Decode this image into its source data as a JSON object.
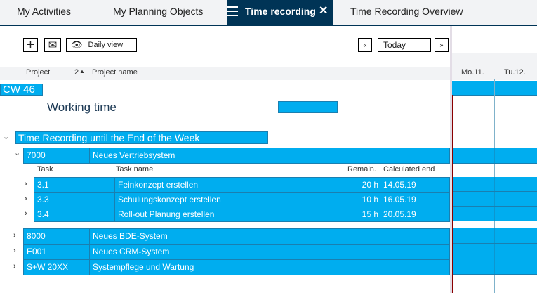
{
  "tabs": [
    {
      "label": "My Activities"
    },
    {
      "label": "My Planning Objects"
    },
    {
      "label": "Time recording",
      "active": true
    },
    {
      "label": "Time Recording Overview"
    }
  ],
  "toolbar": {
    "daily_view": "Daily view",
    "prev": "«",
    "today": "Today",
    "next": "»"
  },
  "columns": {
    "project": "Project",
    "sort": "2",
    "project_name": "Project name",
    "task": "Task",
    "task_name": "Task name",
    "remain": "Remain.",
    "calc_end": "Calculated end"
  },
  "days": [
    "Mo.11.",
    "Tu.12."
  ],
  "week": "CW 46",
  "working_time": "Working time",
  "group": "Time Recording until the End of the Week",
  "expanded_project": {
    "id": "7000",
    "name": "Neues Vertriebsystem"
  },
  "tasks": [
    {
      "id": "3.1",
      "name": "Feinkonzept erstellen",
      "remain": "20 h",
      "end": "14.05.19"
    },
    {
      "id": "3.3",
      "name": "Schulungskonzept erstellen",
      "remain": "10 h",
      "end": "16.05.19"
    },
    {
      "id": "3.4",
      "name": "Roll-out Planung erstellen",
      "remain": "15 h",
      "end": "20.05.19"
    }
  ],
  "projects": [
    {
      "id": "8000",
      "name": "Neues BDE-System"
    },
    {
      "id": "E001",
      "name": "Neues CRM-System"
    },
    {
      "id": "S+W 20XX",
      "name": "Systempflege und Wartung"
    }
  ],
  "colors": {
    "accent": "#00adef",
    "tab_active": "#003456",
    "today_line": "#8b0000"
  }
}
